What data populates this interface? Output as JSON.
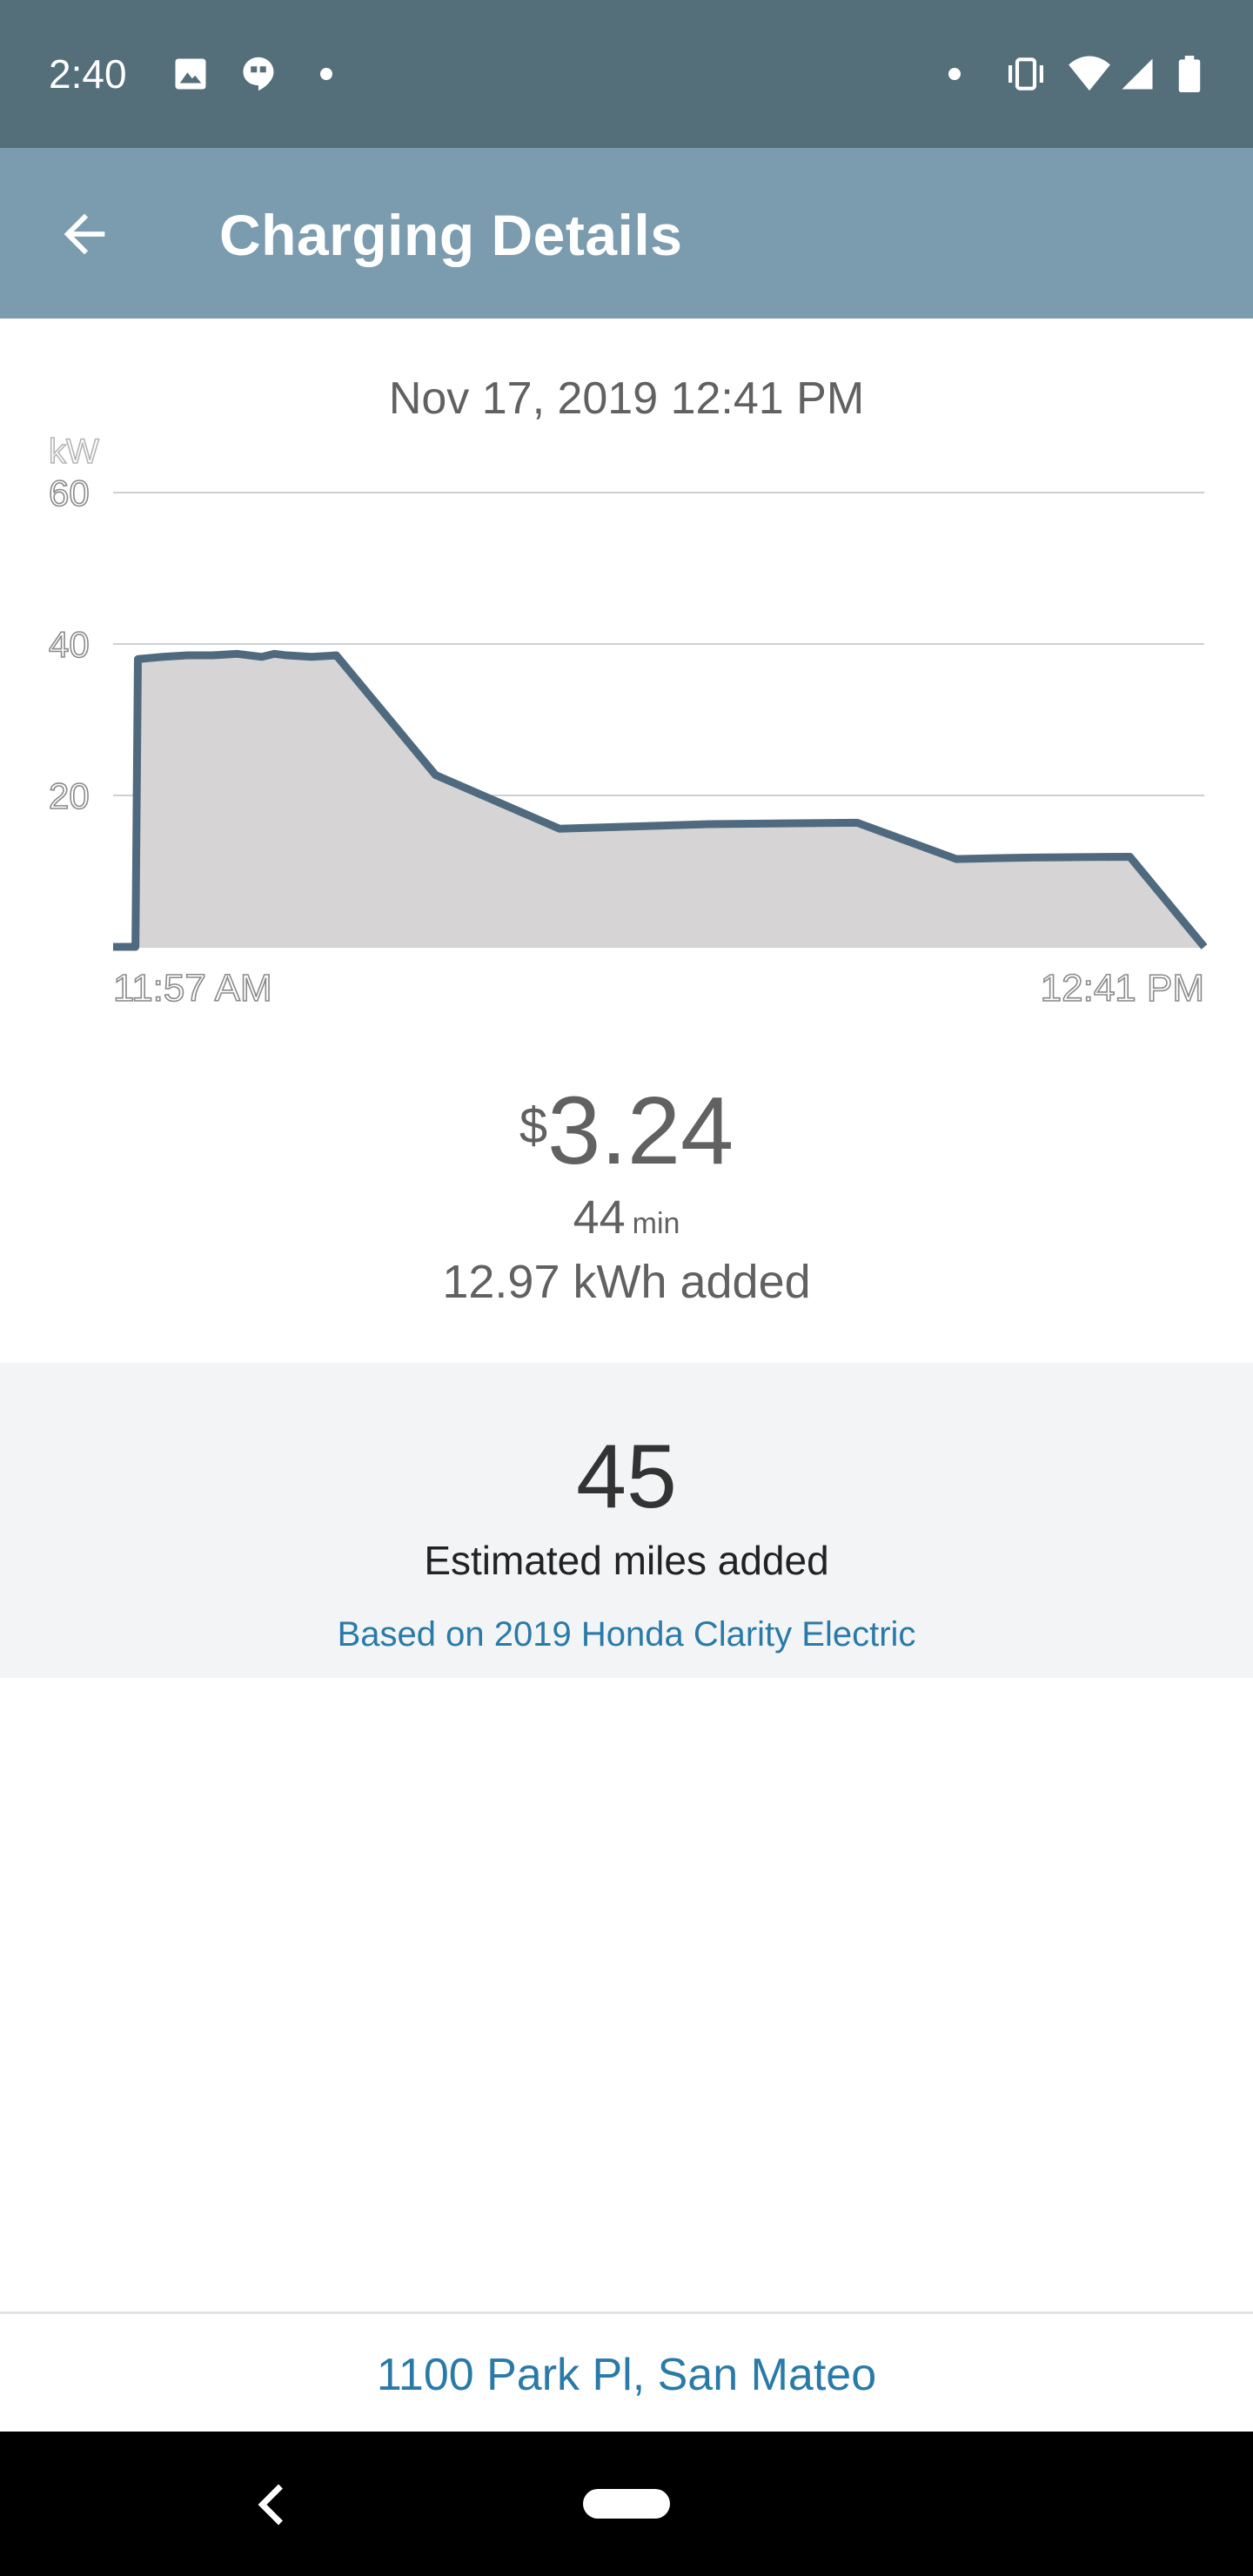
{
  "status_bar": {
    "time": "2:40",
    "left_icons": [
      "image-icon",
      "hangouts-icon",
      "notification-dot-icon"
    ],
    "right_icons": [
      "notification-dot-icon",
      "vibrate-icon",
      "wifi-icon",
      "signal-icon",
      "battery-icon"
    ]
  },
  "app_bar": {
    "title": "Charging Details",
    "back_icon": "arrow-back-icon",
    "background_color": "#7b9cae"
  },
  "session": {
    "date": "Nov 17, 2019 12:41 PM",
    "currency_symbol": "$",
    "cost": "3.24",
    "duration_value": "44",
    "duration_unit": "min",
    "energy_added": "12.97 kWh added"
  },
  "chart_data": {
    "type": "area",
    "ylabel": "kW",
    "ylim": [
      0,
      60
    ],
    "yticks": [
      "60",
      "40",
      "20"
    ],
    "xlabels": [
      "11:57 AM",
      "12:41 PM"
    ],
    "grid": true,
    "x": [
      0,
      0.9,
      1,
      2,
      3,
      4,
      5,
      6,
      6.5,
      7,
      7.5,
      8,
      9,
      13,
      18,
      24,
      30,
      34,
      37,
      41,
      44
    ],
    "values": [
      0,
      0,
      38,
      38.3,
      38.5,
      38.5,
      38.7,
      38.3,
      38.7,
      38.5,
      38.4,
      38.3,
      38.5,
      22.7,
      15.6,
      16.2,
      16.4,
      11.6,
      11.8,
      11.9,
      0
    ],
    "line_color": "#4f6a7e",
    "fill_color": "#d6d4d5"
  },
  "summary": {
    "miles_added": "45",
    "miles_label": "Estimated miles added",
    "vehicle_note": "Based on 2019 Honda Clarity Electric"
  },
  "location": {
    "address": "1100 Park Pl, San Mateo"
  },
  "nav_bar": {
    "back_icon": "nav-back-icon",
    "home_icon": "nav-home-pill-icon"
  }
}
